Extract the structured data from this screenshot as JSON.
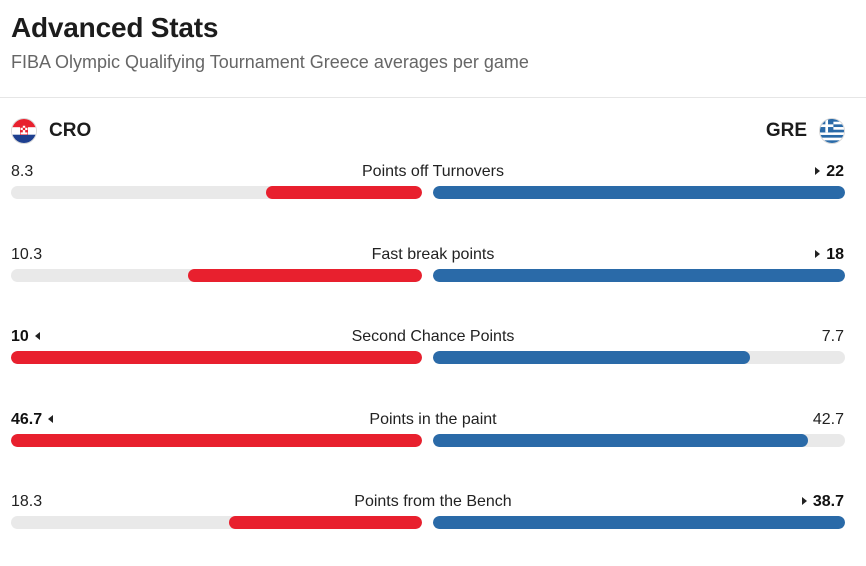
{
  "header": {
    "title": "Advanced Stats",
    "subtitle": "FIBA Olympic Qualifying Tournament Greece averages per game"
  },
  "teams": {
    "left": {
      "code": "CRO",
      "flag_icon": "croatia-flag-icon",
      "color": "#e8202e"
    },
    "right": {
      "code": "GRE",
      "flag_icon": "greece-flag-icon",
      "color": "#2a6aa8"
    }
  },
  "stats": [
    {
      "label": "Points off Turnovers",
      "left_value": "8.3",
      "right_value": "22",
      "left_fraction": 0.38,
      "right_fraction": 1.0,
      "leader": "right"
    },
    {
      "label": "Fast break points",
      "left_value": "10.3",
      "right_value": "18",
      "left_fraction": 0.57,
      "right_fraction": 1.0,
      "leader": "right"
    },
    {
      "label": "Second Chance Points",
      "left_value": "10",
      "right_value": "7.7",
      "left_fraction": 1.0,
      "right_fraction": 0.77,
      "leader": "left"
    },
    {
      "label": "Points in the paint",
      "left_value": "46.7",
      "right_value": "42.7",
      "left_fraction": 1.0,
      "right_fraction": 0.91,
      "leader": "left"
    },
    {
      "label": "Points from the Bench",
      "left_value": "18.3",
      "right_value": "38.7",
      "left_fraction": 0.47,
      "right_fraction": 1.0,
      "leader": "right"
    }
  ]
}
